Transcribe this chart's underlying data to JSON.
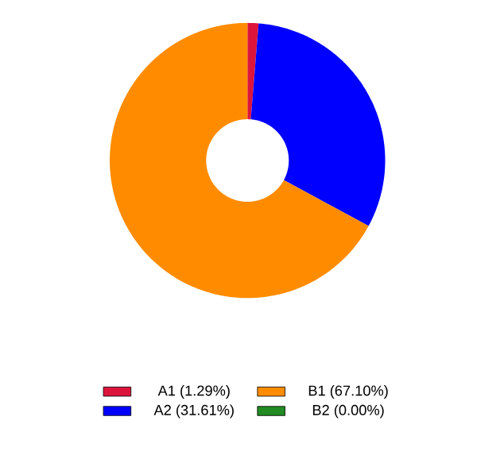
{
  "chart_data": {
    "type": "donut",
    "categories": [
      "A1 (1.29%)",
      "A2 (31.61%)",
      "B1 (67.10%)",
      "B2 (0.00%)"
    ],
    "values": [
      1.29,
      31.61,
      67.1,
      0.0
    ],
    "colors": [
      "#dc143c",
      "#0000ff",
      "#ff8c00",
      "#228b22"
    ],
    "legend": "bottom"
  }
}
